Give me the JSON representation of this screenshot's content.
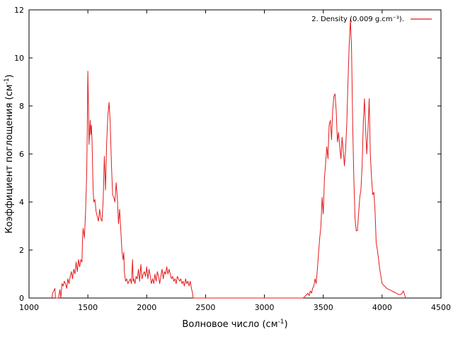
{
  "chart_data": {
    "type": "line",
    "xlabel": "Волновое число (см",
    "xlabel_sup": "-1",
    "xlabel_tail": ")",
    "ylabel": "Коэффициент поглощения (см",
    "ylabel_sup": "-1",
    "ylabel_tail": ")",
    "xlim": [
      1000,
      4500
    ],
    "ylim": [
      0,
      12
    ],
    "x_ticks": [
      1000,
      1500,
      2000,
      2500,
      3000,
      3500,
      4000,
      4500
    ],
    "y_ticks": [
      0,
      2,
      4,
      6,
      8,
      10,
      12
    ],
    "grid": false,
    "legend_position": "top-right",
    "series": [
      {
        "name": "2. Density (0.009 g.cm⁻³).",
        "color": "#e41a1c",
        "points": [
          [
            1195,
            0.0
          ],
          [
            1200,
            0.2
          ],
          [
            1210,
            0.3
          ],
          [
            1220,
            0.4
          ],
          [
            1225,
            0.0
          ],
          [
            1250,
            0.0
          ],
          [
            1262,
            0.35
          ],
          [
            1270,
            0.0
          ],
          [
            1280,
            0.6
          ],
          [
            1290,
            0.5
          ],
          [
            1300,
            0.7
          ],
          [
            1310,
            0.6
          ],
          [
            1320,
            0.4
          ],
          [
            1330,
            0.8
          ],
          [
            1340,
            0.6
          ],
          [
            1350,
            0.9
          ],
          [
            1360,
            1.1
          ],
          [
            1370,
            0.8
          ],
          [
            1380,
            1.2
          ],
          [
            1390,
            1.0
          ],
          [
            1400,
            1.5
          ],
          [
            1410,
            1.1
          ],
          [
            1420,
            1.6
          ],
          [
            1430,
            1.3
          ],
          [
            1440,
            1.6
          ],
          [
            1450,
            1.5
          ],
          [
            1455,
            2.6
          ],
          [
            1460,
            2.9
          ],
          [
            1470,
            2.5
          ],
          [
            1480,
            3.5
          ],
          [
            1490,
            5.2
          ],
          [
            1495,
            7.0
          ],
          [
            1500,
            9.45
          ],
          [
            1505,
            8.0
          ],
          [
            1510,
            6.4
          ],
          [
            1515,
            6.9
          ],
          [
            1520,
            7.4
          ],
          [
            1525,
            6.8
          ],
          [
            1530,
            7.2
          ],
          [
            1535,
            6.6
          ],
          [
            1540,
            5.5
          ],
          [
            1545,
            4.5
          ],
          [
            1550,
            4.0
          ],
          [
            1560,
            4.1
          ],
          [
            1570,
            3.6
          ],
          [
            1580,
            3.4
          ],
          [
            1590,
            3.2
          ],
          [
            1600,
            3.7
          ],
          [
            1610,
            3.3
          ],
          [
            1620,
            3.2
          ],
          [
            1630,
            4.1
          ],
          [
            1640,
            5.9
          ],
          [
            1645,
            5.2
          ],
          [
            1650,
            4.5
          ],
          [
            1655,
            5.5
          ],
          [
            1660,
            6.5
          ],
          [
            1670,
            7.6
          ],
          [
            1680,
            8.15
          ],
          [
            1690,
            7.3
          ],
          [
            1700,
            5.6
          ],
          [
            1710,
            4.3
          ],
          [
            1720,
            4.2
          ],
          [
            1730,
            4.0
          ],
          [
            1740,
            4.8
          ],
          [
            1750,
            4.2
          ],
          [
            1760,
            3.1
          ],
          [
            1770,
            3.7
          ],
          [
            1780,
            2.8
          ],
          [
            1790,
            1.9
          ],
          [
            1800,
            1.6
          ],
          [
            1805,
            1.9
          ],
          [
            1810,
            1.1
          ],
          [
            1820,
            0.7
          ],
          [
            1830,
            0.8
          ],
          [
            1840,
            0.6
          ],
          [
            1850,
            0.7
          ],
          [
            1860,
            0.8
          ],
          [
            1870,
            0.6
          ],
          [
            1880,
            1.6
          ],
          [
            1885,
            0.7
          ],
          [
            1890,
            0.8
          ],
          [
            1900,
            0.6
          ],
          [
            1910,
            0.9
          ],
          [
            1920,
            0.8
          ],
          [
            1930,
            1.2
          ],
          [
            1940,
            0.7
          ],
          [
            1950,
            1.4
          ],
          [
            1960,
            0.8
          ],
          [
            1970,
            1.0
          ],
          [
            1980,
            1.1
          ],
          [
            1990,
            0.9
          ],
          [
            2000,
            1.3
          ],
          [
            2010,
            0.8
          ],
          [
            2020,
            1.2
          ],
          [
            2030,
            0.9
          ],
          [
            2040,
            0.6
          ],
          [
            2050,
            0.8
          ],
          [
            2060,
            0.6
          ],
          [
            2070,
            1.0
          ],
          [
            2080,
            0.7
          ],
          [
            2090,
            1.1
          ],
          [
            2100,
            0.9
          ],
          [
            2110,
            0.6
          ],
          [
            2120,
            0.9
          ],
          [
            2130,
            1.2
          ],
          [
            2140,
            0.8
          ],
          [
            2150,
            1.1
          ],
          [
            2160,
            1.0
          ],
          [
            2170,
            1.3
          ],
          [
            2180,
            1.0
          ],
          [
            2190,
            1.2
          ],
          [
            2200,
            1.0
          ],
          [
            2210,
            0.8
          ],
          [
            2220,
            0.9
          ],
          [
            2230,
            0.7
          ],
          [
            2240,
            0.8
          ],
          [
            2250,
            0.6
          ],
          [
            2260,
            0.9
          ],
          [
            2270,
            0.8
          ],
          [
            2280,
            0.7
          ],
          [
            2290,
            0.8
          ],
          [
            2300,
            0.6
          ],
          [
            2310,
            0.7
          ],
          [
            2320,
            0.5
          ],
          [
            2330,
            0.8
          ],
          [
            2340,
            0.6
          ],
          [
            2350,
            0.7
          ],
          [
            2360,
            0.5
          ],
          [
            2370,
            0.7
          ],
          [
            2380,
            0.4
          ],
          [
            2390,
            0.2
          ],
          [
            2395,
            0.0
          ],
          [
            3330,
            0.0
          ],
          [
            3340,
            0.05
          ],
          [
            3350,
            0.1
          ],
          [
            3360,
            0.15
          ],
          [
            3370,
            0.2
          ],
          [
            3380,
            0.1
          ],
          [
            3390,
            0.3
          ],
          [
            3400,
            0.2
          ],
          [
            3410,
            0.4
          ],
          [
            3420,
            0.5
          ],
          [
            3430,
            0.8
          ],
          [
            3440,
            0.6
          ],
          [
            3450,
            1.2
          ],
          [
            3460,
            1.9
          ],
          [
            3470,
            2.5
          ],
          [
            3480,
            3.0
          ],
          [
            3490,
            4.2
          ],
          [
            3500,
            3.5
          ],
          [
            3510,
            5.0
          ],
          [
            3520,
            5.6
          ],
          [
            3530,
            6.3
          ],
          [
            3540,
            5.8
          ],
          [
            3550,
            7.2
          ],
          [
            3560,
            7.4
          ],
          [
            3570,
            6.6
          ],
          [
            3580,
            7.8
          ],
          [
            3590,
            8.4
          ],
          [
            3600,
            8.5
          ],
          [
            3610,
            7.8
          ],
          [
            3620,
            6.5
          ],
          [
            3630,
            6.9
          ],
          [
            3640,
            6.3
          ],
          [
            3650,
            5.8
          ],
          [
            3660,
            6.7
          ],
          [
            3670,
            6.1
          ],
          [
            3680,
            5.5
          ],
          [
            3690,
            6.2
          ],
          [
            3700,
            7.3
          ],
          [
            3710,
            9.0
          ],
          [
            3720,
            10.5
          ],
          [
            3730,
            11.6
          ],
          [
            3740,
            10.5
          ],
          [
            3750,
            7.2
          ],
          [
            3760,
            5.0
          ],
          [
            3770,
            3.3
          ],
          [
            3780,
            2.8
          ],
          [
            3790,
            2.8
          ],
          [
            3800,
            3.5
          ],
          [
            3810,
            4.2
          ],
          [
            3820,
            4.5
          ],
          [
            3830,
            5.5
          ],
          [
            3840,
            7.3
          ],
          [
            3850,
            8.3
          ],
          [
            3860,
            7.0
          ],
          [
            3870,
            6.0
          ],
          [
            3880,
            7.0
          ],
          [
            3890,
            8.3
          ],
          [
            3900,
            6.0
          ],
          [
            3910,
            5.0
          ],
          [
            3920,
            4.3
          ],
          [
            3930,
            4.4
          ],
          [
            3940,
            3.6
          ],
          [
            3950,
            2.3
          ],
          [
            3960,
            2.0
          ],
          [
            3970,
            1.6
          ],
          [
            3980,
            1.2
          ],
          [
            3990,
            0.9
          ],
          [
            4000,
            0.6
          ],
          [
            4020,
            0.5
          ],
          [
            4040,
            0.4
          ],
          [
            4060,
            0.35
          ],
          [
            4080,
            0.3
          ],
          [
            4100,
            0.25
          ],
          [
            4120,
            0.2
          ],
          [
            4140,
            0.15
          ],
          [
            4160,
            0.15
          ],
          [
            4170,
            0.2
          ],
          [
            4180,
            0.3
          ],
          [
            4190,
            0.15
          ],
          [
            4200,
            0.0
          ]
        ]
      }
    ]
  }
}
